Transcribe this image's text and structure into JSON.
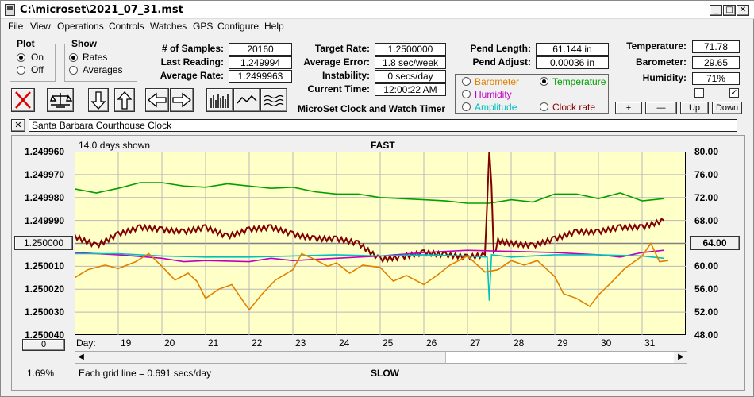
{
  "window": {
    "title": "C:\\microset\\2021_07_31.mst"
  },
  "menu": [
    "File",
    "View",
    "Operations",
    "Controls",
    "Watches",
    "GPS",
    "Configure",
    "Help"
  ],
  "plot_group": {
    "label": "Plot",
    "on": "On",
    "off": "Off",
    "selected": "On"
  },
  "show_group": {
    "label": "Show",
    "rates": "Rates",
    "averages": "Averages",
    "selected": "Rates"
  },
  "stats": {
    "samples_label": "# of Samples:",
    "samples": "20160",
    "last_reading_label": "Last Reading:",
    "last_reading": "1.249994",
    "average_rate_label": "Average Rate:",
    "average_rate": "1.2499963",
    "target_rate_label": "Target Rate:",
    "target_rate": "1.2500000",
    "average_error_label": "Average Error:",
    "average_error": "1.8 sec/week",
    "instability_label": "Instability:",
    "instability": "0 secs/day",
    "current_time_label": "Current Time:",
    "current_time": "12:00:22 AM",
    "pend_length_label": "Pend Length:",
    "pend_length": "61.144 in",
    "pend_adjust_label": "Pend Adjust:",
    "pend_adjust": "0.00036 in",
    "temperature_label": "Temperature:",
    "temperature": "71.78",
    "barometer_label": "Barometer:",
    "barometer": "29.65",
    "humidity_label": "Humidity:",
    "humidity": "71%"
  },
  "app_name": "MicroSet Clock and Watch Timer",
  "sensor_options": {
    "barometer": "Barometer",
    "temperature": "Temperature",
    "humidity": "Humidity",
    "amplitude": "Amplitude",
    "clock_rate": "Clock rate",
    "selected": "Temperature",
    "colors": {
      "barometer": "#e08000",
      "temperature": "#00a000",
      "humidity": "#c000c0",
      "amplitude": "#00c0c0",
      "clock_rate": "#800000"
    }
  },
  "adjust_buttons": {
    "plus": "+",
    "minus": "—",
    "up": "Up",
    "down": "Down"
  },
  "clock_name": "Santa Barbara Courthouse Clock",
  "chart_header": {
    "days_shown": "14.0 days shown",
    "fast": "FAST",
    "slow": "SLOW"
  },
  "bottom": {
    "percent": "1.69%",
    "grid_note": "Each grid line = 0.691 secs/day",
    "day_label": "Day:",
    "left_button": "0",
    "mid_left_button": "1.250000",
    "mid_right_button": "64.00"
  },
  "chart_data": {
    "type": "line",
    "x_label": "Day:",
    "x_ticks": [
      19,
      20,
      21,
      22,
      23,
      24,
      25,
      26,
      27,
      28,
      29,
      30,
      31
    ],
    "xlim": [
      18.0,
      32.0
    ],
    "left_axis": {
      "ticks": [
        "1.249960",
        "1.249970",
        "1.249980",
        "1.249990",
        "1.250000",
        "1.250010",
        "1.250020",
        "1.250030",
        "1.250040"
      ],
      "ylim": [
        1.24996,
        1.25004
      ],
      "inverted": true
    },
    "right_axis": {
      "ticks": [
        "80.00",
        "76.00",
        "72.00",
        "68.00",
        "64.00",
        "60.00",
        "56.00",
        "52.00",
        "48.00"
      ],
      "ylim": [
        48,
        80
      ]
    },
    "series": [
      {
        "name": "Temperature",
        "color": "#00a000",
        "axis": "right",
        "x": [
          18.0,
          18.5,
          19.0,
          19.5,
          20.0,
          20.5,
          21.0,
          21.5,
          22.0,
          22.5,
          23.0,
          23.5,
          24.0,
          24.5,
          25.0,
          25.5,
          26.0,
          26.5,
          27.0,
          27.5,
          28.0,
          28.5,
          29.0,
          29.5,
          30.0,
          30.5,
          31.0,
          31.5
        ],
        "y": [
          73.5,
          72.8,
          73.6,
          74.6,
          74.6,
          74.0,
          73.8,
          74.4,
          74.0,
          73.6,
          73.8,
          73.0,
          72.6,
          72.6,
          72.0,
          71.8,
          71.6,
          71.4,
          71.0,
          71.0,
          71.6,
          71.2,
          72.6,
          72.6,
          71.8,
          72.8,
          71.4,
          71.8
        ]
      },
      {
        "name": "Clock rate",
        "color": "#800000",
        "axis": "left",
        "x": [
          18.0,
          18.5,
          19.0,
          19.5,
          20.0,
          20.5,
          21.0,
          21.5,
          22.0,
          22.5,
          23.0,
          23.5,
          24.0,
          24.5,
          25.0,
          25.5,
          26.0,
          26.5,
          27.0,
          27.4,
          27.5,
          27.55,
          27.6,
          27.7,
          28.0,
          28.5,
          29.0,
          29.5,
          30.0,
          30.5,
          31.0,
          31.5
        ],
        "y": [
          1.249997,
          1.250001,
          1.249996,
          1.249993,
          1.249994,
          1.249995,
          1.249993,
          1.249997,
          1.249994,
          1.249993,
          1.249996,
          1.249998,
          1.249998,
          1.25,
          1.250007,
          1.250006,
          1.250004,
          1.250005,
          1.250006,
          1.250005,
          1.24996,
          1.249975,
          1.250005,
          1.249999,
          1.25,
          1.250001,
          1.249998,
          1.249995,
          1.249995,
          1.249993,
          1.249993,
          1.24999
        ]
      },
      {
        "name": "Humidity",
        "color": "#c000c0",
        "axis": "right",
        "x": [
          18.0,
          19.0,
          20.0,
          20.5,
          21.0,
          22.0,
          22.5,
          23.0,
          24.0,
          25.0,
          26.0,
          27.0,
          28.0,
          29.0,
          30.0,
          30.5,
          31.0,
          31.5
        ],
        "y": [
          62.4,
          62.0,
          61.4,
          60.8,
          61.0,
          60.8,
          61.4,
          61.0,
          61.4,
          61.8,
          62.4,
          62.8,
          62.6,
          62.4,
          62.0,
          61.6,
          62.4,
          62.8
        ]
      },
      {
        "name": "Amplitude",
        "color": "#00c0c0",
        "axis": "right",
        "x": [
          18.0,
          19.0,
          20.0,
          21.0,
          22.0,
          23.0,
          24.0,
          25.0,
          26.0,
          27.0,
          27.45,
          27.5,
          27.55,
          28.0,
          29.0,
          30.0,
          31.0,
          31.5
        ],
        "y": [
          62.2,
          62.2,
          61.8,
          61.6,
          61.6,
          61.8,
          62.0,
          61.8,
          62.0,
          61.8,
          61.6,
          54.0,
          62.0,
          61.6,
          62.0,
          62.0,
          61.8,
          61.4
        ]
      },
      {
        "name": "Barometer",
        "color": "#e08000",
        "axis": "right",
        "x": [
          18.0,
          18.3,
          18.7,
          19.0,
          19.4,
          19.7,
          20.0,
          20.3,
          20.6,
          20.8,
          21.0,
          21.3,
          21.6,
          22.0,
          22.3,
          22.6,
          23.0,
          23.2,
          23.5,
          23.8,
          24.0,
          24.3,
          24.6,
          25.0,
          25.3,
          25.6,
          26.0,
          26.3,
          26.6,
          27.0,
          27.4,
          27.7,
          28.0,
          28.3,
          28.6,
          29.0,
          29.2,
          29.5,
          29.8,
          30.0,
          30.3,
          30.6,
          31.0,
          31.2,
          31.4,
          31.6
        ],
        "y": [
          58.0,
          59.4,
          60.2,
          59.6,
          60.8,
          62.2,
          60.0,
          57.6,
          58.8,
          57.4,
          54.4,
          56.0,
          56.8,
          52.4,
          55.2,
          57.6,
          59.4,
          62.2,
          61.2,
          60.0,
          60.6,
          58.8,
          60.2,
          59.8,
          57.4,
          58.4,
          56.8,
          58.4,
          60.2,
          61.8,
          59.0,
          59.4,
          61.0,
          60.2,
          61.0,
          58.2,
          55.2,
          54.4,
          53.0,
          55.0,
          57.2,
          59.6,
          61.8,
          64.0,
          60.8,
          61.0
        ]
      }
    ]
  }
}
